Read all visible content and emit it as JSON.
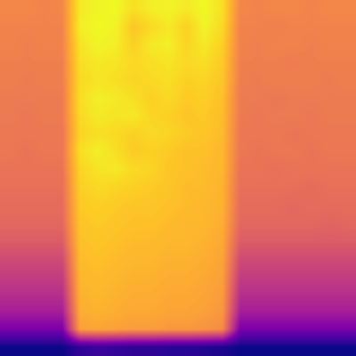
{
  "chart_data": {
    "type": "heatmap",
    "color": "plasma",
    "tick_labels": false,
    "cells": [
      [
        0.74,
        0.74,
        0.73,
        0.74,
        0.95,
        0.97,
        0.98,
        0.93,
        0.96,
        0.97,
        0.95,
        0.98,
        0.93,
        0.74,
        0.73,
        0.74,
        0.74,
        0.73,
        0.74,
        0.74
      ],
      [
        0.73,
        0.73,
        0.73,
        0.73,
        0.96,
        0.98,
        0.97,
        0.88,
        0.92,
        0.95,
        0.9,
        0.97,
        0.92,
        0.73,
        0.73,
        0.72,
        0.73,
        0.73,
        0.73,
        0.73
      ],
      [
        0.73,
        0.72,
        0.73,
        0.73,
        0.94,
        0.97,
        0.96,
        0.9,
        0.95,
        0.96,
        0.91,
        0.95,
        0.9,
        0.73,
        0.72,
        0.73,
        0.73,
        0.72,
        0.73,
        0.73
      ],
      [
        0.72,
        0.72,
        0.72,
        0.72,
        0.93,
        0.95,
        0.94,
        0.92,
        0.93,
        0.94,
        0.92,
        0.93,
        0.89,
        0.72,
        0.72,
        0.72,
        0.71,
        0.72,
        0.72,
        0.72
      ],
      [
        0.72,
        0.71,
        0.72,
        0.72,
        0.92,
        0.94,
        0.93,
        0.91,
        0.92,
        0.93,
        0.9,
        0.91,
        0.88,
        0.72,
        0.71,
        0.72,
        0.72,
        0.72,
        0.71,
        0.72
      ],
      [
        0.71,
        0.71,
        0.71,
        0.71,
        0.93,
        0.96,
        0.95,
        0.93,
        0.9,
        0.92,
        0.89,
        0.9,
        0.87,
        0.71,
        0.71,
        0.7,
        0.71,
        0.71,
        0.71,
        0.71
      ],
      [
        0.71,
        0.7,
        0.71,
        0.71,
        0.92,
        0.95,
        0.94,
        0.95,
        0.91,
        0.9,
        0.88,
        0.89,
        0.86,
        0.71,
        0.7,
        0.71,
        0.71,
        0.7,
        0.71,
        0.71
      ],
      [
        0.7,
        0.7,
        0.7,
        0.7,
        0.91,
        0.93,
        0.92,
        0.9,
        0.92,
        0.91,
        0.89,
        0.88,
        0.86,
        0.7,
        0.7,
        0.7,
        0.69,
        0.7,
        0.7,
        0.7
      ],
      [
        0.7,
        0.69,
        0.7,
        0.7,
        0.93,
        0.96,
        0.93,
        0.89,
        0.9,
        0.89,
        0.87,
        0.87,
        0.85,
        0.7,
        0.69,
        0.7,
        0.7,
        0.69,
        0.7,
        0.7
      ],
      [
        0.69,
        0.69,
        0.69,
        0.69,
        0.91,
        0.94,
        0.95,
        0.92,
        0.91,
        0.88,
        0.87,
        0.86,
        0.85,
        0.69,
        0.69,
        0.68,
        0.69,
        0.69,
        0.69,
        0.69
      ],
      [
        0.68,
        0.68,
        0.68,
        0.68,
        0.9,
        0.92,
        0.91,
        0.9,
        0.89,
        0.88,
        0.86,
        0.86,
        0.84,
        0.68,
        0.68,
        0.68,
        0.68,
        0.67,
        0.68,
        0.68
      ],
      [
        0.67,
        0.67,
        0.67,
        0.67,
        0.89,
        0.9,
        0.89,
        0.88,
        0.88,
        0.87,
        0.86,
        0.85,
        0.84,
        0.67,
        0.67,
        0.67,
        0.66,
        0.67,
        0.67,
        0.67
      ],
      [
        0.66,
        0.66,
        0.66,
        0.66,
        0.88,
        0.89,
        0.88,
        0.87,
        0.87,
        0.86,
        0.85,
        0.85,
        0.83,
        0.66,
        0.66,
        0.66,
        0.66,
        0.66,
        0.65,
        0.66
      ],
      [
        0.63,
        0.63,
        0.63,
        0.63,
        0.87,
        0.88,
        0.87,
        0.86,
        0.86,
        0.85,
        0.85,
        0.84,
        0.82,
        0.63,
        0.63,
        0.63,
        0.63,
        0.63,
        0.63,
        0.63
      ],
      [
        0.58,
        0.58,
        0.58,
        0.58,
        0.86,
        0.87,
        0.86,
        0.85,
        0.85,
        0.84,
        0.84,
        0.83,
        0.81,
        0.58,
        0.58,
        0.58,
        0.58,
        0.58,
        0.58,
        0.58
      ],
      [
        0.54,
        0.54,
        0.54,
        0.54,
        0.85,
        0.86,
        0.85,
        0.84,
        0.84,
        0.83,
        0.83,
        0.82,
        0.8,
        0.54,
        0.54,
        0.54,
        0.54,
        0.54,
        0.54,
        0.54
      ],
      [
        0.5,
        0.5,
        0.5,
        0.5,
        0.84,
        0.85,
        0.84,
        0.83,
        0.83,
        0.82,
        0.82,
        0.81,
        0.79,
        0.5,
        0.5,
        0.5,
        0.5,
        0.5,
        0.5,
        0.5
      ],
      [
        0.45,
        0.45,
        0.45,
        0.45,
        0.83,
        0.84,
        0.83,
        0.82,
        0.82,
        0.81,
        0.81,
        0.8,
        0.78,
        0.45,
        0.45,
        0.45,
        0.45,
        0.45,
        0.45,
        0.45
      ],
      [
        0.35,
        0.35,
        0.35,
        0.35,
        0.8,
        0.81,
        0.8,
        0.79,
        0.79,
        0.78,
        0.78,
        0.77,
        0.75,
        0.35,
        0.35,
        0.35,
        0.35,
        0.35,
        0.35,
        0.35
      ],
      [
        0.15,
        0.15,
        0.15,
        0.15,
        0.2,
        0.22,
        0.21,
        0.2,
        0.2,
        0.19,
        0.19,
        0.18,
        0.17,
        0.15,
        0.15,
        0.15,
        0.15,
        0.15,
        0.15,
        0.15
      ]
    ]
  }
}
